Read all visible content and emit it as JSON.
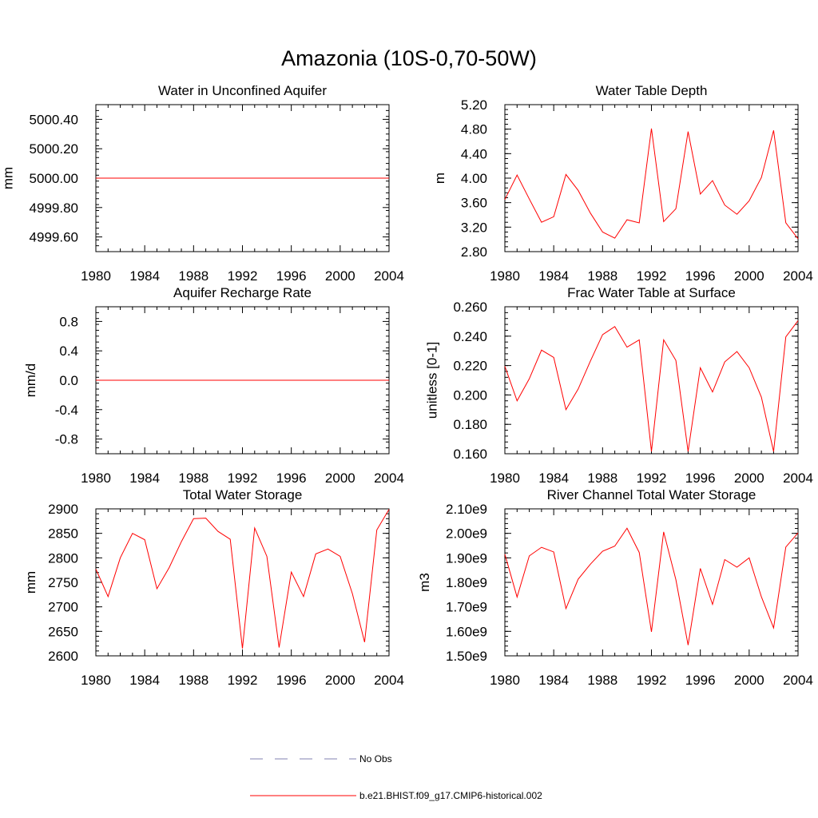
{
  "page": {
    "title": "Amazonia (10S-0,70-50W)"
  },
  "colors": {
    "model": "#ff0000",
    "obs": "#8080b0",
    "axis": "#000000"
  },
  "legend": {
    "items": [
      {
        "label": "No Obs",
        "style": "dashed",
        "color": "#8080b0"
      },
      {
        "label": "b.e21.BHIST.f09_g17.CMIP6-historical.002",
        "style": "solid",
        "color": "#ff0000"
      }
    ]
  },
  "chart_data": [
    {
      "type": "line",
      "title": "Water in Unconfined Aquifer",
      "ylabel": "mm",
      "xlim": [
        1980,
        2004
      ],
      "ylim": [
        4999.5,
        5000.5
      ],
      "xticks": [
        1980,
        1984,
        1988,
        1992,
        1996,
        2000,
        2004
      ],
      "xtick_labels": [
        "1980",
        "1984",
        "1988",
        "1992",
        "1996",
        "2000",
        "2004"
      ],
      "yticks": [
        4999.6,
        4999.8,
        5000.0,
        5000.2,
        5000.4
      ],
      "ytick_labels": [
        "4999.60",
        "4999.80",
        "5000.00",
        "5000.20",
        "5000.40"
      ],
      "x": [
        1980,
        1981,
        1982,
        1983,
        1984,
        1985,
        1986,
        1987,
        1988,
        1989,
        1990,
        1991,
        1992,
        1993,
        1994,
        1995,
        1996,
        1997,
        1998,
        1999,
        2000,
        2001,
        2002,
        2003,
        2004
      ],
      "series": [
        {
          "values": [
            5000,
            5000,
            5000,
            5000,
            5000,
            5000,
            5000,
            5000,
            5000,
            5000,
            5000,
            5000,
            5000,
            5000,
            5000,
            5000,
            5000,
            5000,
            5000,
            5000,
            5000,
            5000,
            5000,
            5000,
            5000
          ],
          "color": "#ff0000"
        }
      ]
    },
    {
      "type": "line",
      "title": "Water Table Depth",
      "ylabel": "m",
      "xlim": [
        1980,
        2004
      ],
      "ylim": [
        2.8,
        5.2
      ],
      "xticks": [
        1980,
        1984,
        1988,
        1992,
        1996,
        2000,
        2004
      ],
      "xtick_labels": [
        "1980",
        "1984",
        "1988",
        "1992",
        "1996",
        "2000",
        "2004"
      ],
      "yticks": [
        2.8,
        3.2,
        3.6,
        4.0,
        4.4,
        4.8,
        5.2
      ],
      "ytick_labels": [
        "2.80",
        "3.20",
        "3.60",
        "4.00",
        "4.40",
        "4.80",
        "5.20"
      ],
      "x": [
        1980,
        1981,
        1982,
        1983,
        1984,
        1985,
        1986,
        1987,
        1988,
        1989,
        1990,
        1991,
        1992,
        1993,
        1994,
        1995,
        1996,
        1997,
        1998,
        1999,
        2000,
        2001,
        2002,
        2003,
        2004
      ],
      "series": [
        {
          "values": [
            3.65,
            4.05,
            3.66,
            3.28,
            3.37,
            4.06,
            3.8,
            3.43,
            3.12,
            3.02,
            3.32,
            3.27,
            4.81,
            3.29,
            3.5,
            4.76,
            3.74,
            3.96,
            3.56,
            3.41,
            3.63,
            4.01,
            4.78,
            3.27,
            3.01
          ],
          "color": "#ff0000"
        }
      ]
    },
    {
      "type": "line",
      "title": "Aquifer Recharge Rate",
      "ylabel": "mm/d",
      "xlim": [
        1980,
        2004
      ],
      "ylim": [
        -1.0,
        1.0
      ],
      "xticks": [
        1980,
        1984,
        1988,
        1992,
        1996,
        2000,
        2004
      ],
      "xtick_labels": [
        "1980",
        "1984",
        "1988",
        "1992",
        "1996",
        "2000",
        "2004"
      ],
      "yticks": [
        -0.8,
        -0.4,
        0.0,
        0.4,
        0.8
      ],
      "ytick_labels": [
        "-0.8",
        "-0.4",
        "0.0",
        "0.4",
        "0.8"
      ],
      "x": [
        1980,
        1981,
        1982,
        1983,
        1984,
        1985,
        1986,
        1987,
        1988,
        1989,
        1990,
        1991,
        1992,
        1993,
        1994,
        1995,
        1996,
        1997,
        1998,
        1999,
        2000,
        2001,
        2002,
        2003,
        2004
      ],
      "series": [
        {
          "values": [
            0,
            0,
            0,
            0,
            0,
            0,
            0,
            0,
            0,
            0,
            0,
            0,
            0,
            0,
            0,
            0,
            0,
            0,
            0,
            0,
            0,
            0,
            0,
            0,
            0
          ],
          "color": "#ff0000"
        }
      ]
    },
    {
      "type": "line",
      "title": "Frac Water Table at Surface",
      "ylabel": "unitless [0-1]",
      "xlim": [
        1980,
        2004
      ],
      "ylim": [
        0.16,
        0.26
      ],
      "xticks": [
        1980,
        1984,
        1988,
        1992,
        1996,
        2000,
        2004
      ],
      "xtick_labels": [
        "1980",
        "1984",
        "1988",
        "1992",
        "1996",
        "2000",
        "2004"
      ],
      "yticks": [
        0.16,
        0.18,
        0.2,
        0.22,
        0.24,
        0.26
      ],
      "ytick_labels": [
        "0.160",
        "0.180",
        "0.200",
        "0.220",
        "0.240",
        "0.260"
      ],
      "x": [
        1980,
        1981,
        1982,
        1983,
        1984,
        1985,
        1986,
        1987,
        1988,
        1989,
        1990,
        1991,
        1992,
        1993,
        1994,
        1995,
        1996,
        1997,
        1998,
        1999,
        2000,
        2001,
        2002,
        2003,
        2004
      ],
      "series": [
        {
          "values": [
            0.2195,
            0.196,
            0.211,
            0.2305,
            0.2255,
            0.19,
            0.204,
            0.223,
            0.241,
            0.2465,
            0.2325,
            0.2375,
            0.1615,
            0.2375,
            0.2235,
            0.1615,
            0.2185,
            0.202,
            0.2225,
            0.2295,
            0.2185,
            0.1985,
            0.1615,
            0.2395,
            0.2505
          ],
          "color": "#ff0000"
        }
      ]
    },
    {
      "type": "line",
      "title": "Total Water Storage",
      "ylabel": "mm",
      "xlim": [
        1980,
        2004
      ],
      "ylim": [
        2600,
        2900
      ],
      "xticks": [
        1980,
        1984,
        1988,
        1992,
        1996,
        2000,
        2004
      ],
      "xtick_labels": [
        "1980",
        "1984",
        "1988",
        "1992",
        "1996",
        "2000",
        "2004"
      ],
      "yticks": [
        2600,
        2650,
        2700,
        2750,
        2800,
        2850,
        2900
      ],
      "ytick_labels": [
        "2600",
        "2650",
        "2700",
        "2750",
        "2800",
        "2850",
        "2900"
      ],
      "x": [
        1980,
        1981,
        1982,
        1983,
        1984,
        1985,
        1986,
        1987,
        1988,
        1989,
        1990,
        1991,
        1992,
        1993,
        1994,
        1995,
        1996,
        1997,
        1998,
        1999,
        2000,
        2001,
        2002,
        2003,
        2004
      ],
      "series": [
        {
          "values": [
            2777,
            2721,
            2800,
            2850,
            2837,
            2737,
            2780,
            2833,
            2880,
            2881,
            2854,
            2838,
            2615,
            2861,
            2803,
            2617,
            2771,
            2721,
            2808,
            2818,
            2803,
            2727,
            2628,
            2857,
            2899
          ],
          "color": "#ff0000"
        }
      ]
    },
    {
      "type": "line",
      "title": "River Channel Total Water Storage",
      "ylabel": "m3",
      "xlim": [
        1980,
        2004
      ],
      "ylim": [
        1500000000.0,
        2100000000.0
      ],
      "xticks": [
        1980,
        1984,
        1988,
        1992,
        1996,
        2000,
        2004
      ],
      "xtick_labels": [
        "1980",
        "1984",
        "1988",
        "1992",
        "1996",
        "2000",
        "2004"
      ],
      "yticks": [
        1500000000.0,
        1600000000.0,
        1700000000.0,
        1800000000.0,
        1900000000.0,
        2000000000.0,
        2100000000.0
      ],
      "ytick_labels": [
        "1.50e9",
        "1.60e9",
        "1.70e9",
        "1.80e9",
        "1.90e9",
        "2.00e9",
        "2.10e9"
      ],
      "x": [
        1980,
        1981,
        1982,
        1983,
        1984,
        1985,
        1986,
        1987,
        1988,
        1989,
        1990,
        1991,
        1992,
        1993,
        1994,
        1995,
        1996,
        1997,
        1998,
        1999,
        2000,
        2001,
        2002,
        2003,
        2004
      ],
      "series": [
        {
          "values": [
            1915000000.0,
            1740000000.0,
            1908000000.0,
            1943000000.0,
            1924000000.0,
            1693000000.0,
            1813000000.0,
            1874000000.0,
            1927000000.0,
            1948000000.0,
            2021000000.0,
            1922000000.0,
            1598000000.0,
            2006000000.0,
            1811000000.0,
            1544000000.0,
            1857000000.0,
            1710000000.0,
            1893000000.0,
            1862000000.0,
            1900000000.0,
            1741000000.0,
            1614000000.0,
            1944000000.0,
            2002000000.0
          ],
          "color": "#ff0000"
        }
      ]
    }
  ]
}
